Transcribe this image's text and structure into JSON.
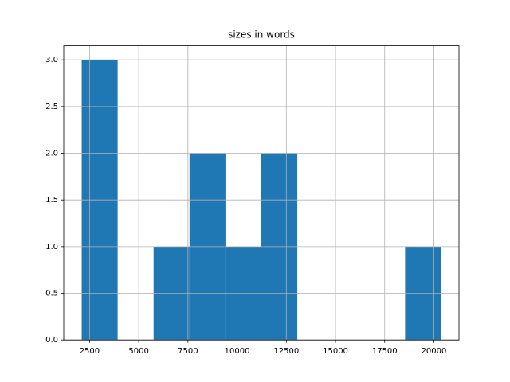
{
  "chart_data": {
    "type": "histogram",
    "title": "sizes in words",
    "bins": [
      2100,
      3926.4,
      5752.8,
      7579.2,
      9405.6,
      11232,
      13058.4,
      14884.8,
      16711.2,
      18537.6,
      20364
    ],
    "counts": [
      3,
      0,
      1,
      2,
      1,
      2,
      0,
      0,
      0,
      1
    ],
    "color": "#1f77b4",
    "xlim": [
      1187,
      21277
    ],
    "xticks": [
      2500,
      5000,
      7500,
      10000,
      12500,
      15000,
      17500,
      20000
    ],
    "ylim": [
      0,
      3.15
    ],
    "yticks": [
      {
        "value": 0,
        "label": "0.0"
      },
      0.5,
      {
        "value": 1,
        "label": "1.0"
      },
      1.5,
      {
        "value": 2,
        "label": "2.0"
      },
      2.5,
      {
        "value": 3,
        "label": "3.0"
      }
    ],
    "grid": true
  }
}
